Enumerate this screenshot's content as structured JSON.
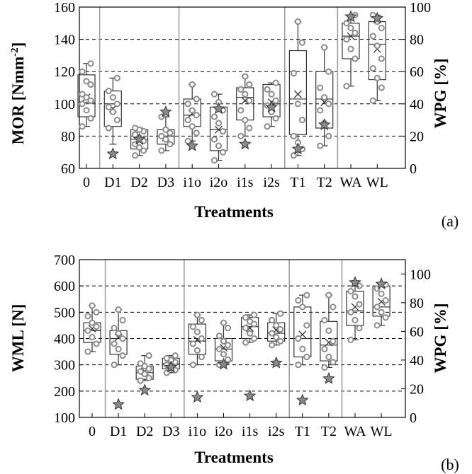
{
  "colors": {
    "box": "#333333",
    "marker_fill": "#ffffff",
    "marker_stroke": "#8c8c8c",
    "star_fill": "#8a8a8a",
    "star_stroke": "#333333",
    "grid": "#000000",
    "separator": "#9a9a9a"
  },
  "chart_data": [
    {
      "panel_tag": "(a)",
      "type": "box",
      "categories": [
        "0",
        "D1",
        "D2",
        "D3",
        "i1o",
        "i2o",
        "i1s",
        "i2s",
        "T1",
        "T2",
        "WA",
        "WL"
      ],
      "xlabel": "Treatments",
      "ylabel": "MOR [Nmm",
      "ylabel_sup": "-2",
      "ylabel_close": "]",
      "ylim": [
        60,
        160
      ],
      "yticks": [
        "60",
        "80",
        "100",
        "120",
        "140",
        "160"
      ],
      "y2label": "WPG [%]",
      "y2lim": [
        0,
        100
      ],
      "y2ticks": [
        "0",
        "20",
        "40",
        "60",
        "80",
        "100"
      ],
      "grid": "dashed horizontal",
      "group_separators_after": [
        "0",
        "D3",
        "i2s",
        "T2"
      ],
      "boxes": [
        {
          "q1": 92,
          "median": 101,
          "q3": 118,
          "whisker_low": 86,
          "whisker_high": 125,
          "mean": 104
        },
        {
          "q1": 86,
          "median": 100,
          "q3": 108,
          "whisker_low": 75,
          "whisker_high": 116,
          "mean": 97
        },
        {
          "q1": 72,
          "median": 78,
          "q3": 84,
          "whisker_low": 68,
          "whisker_high": 85,
          "mean": 77
        },
        {
          "q1": 75,
          "median": 80,
          "q3": 84,
          "whisker_low": 71,
          "whisker_high": 92,
          "mean": 79
        },
        {
          "q1": 86,
          "median": 93,
          "q3": 103,
          "whisker_low": 77,
          "whisker_high": 112,
          "mean": 94
        },
        {
          "q1": 71,
          "median": 84,
          "q3": 98,
          "whisker_low": 65,
          "whisker_high": 106,
          "mean": 84
        },
        {
          "q1": 90,
          "median": 104,
          "q3": 110,
          "whisker_low": 80,
          "whisker_high": 117,
          "mean": 102
        },
        {
          "q1": 92,
          "median": 100,
          "q3": 112,
          "whisker_low": 86,
          "whisker_high": 113,
          "mean": 101
        },
        {
          "q1": 81,
          "median": 103,
          "q3": 133,
          "whisker_low": 68,
          "whisker_high": 151,
          "mean": 106
        },
        {
          "q1": 85,
          "median": 103,
          "q3": 120,
          "whisker_low": 74,
          "whisker_high": 135,
          "mean": 101
        },
        {
          "q1": 128,
          "median": 142,
          "q3": 150,
          "whisker_low": 111,
          "whisker_high": 155,
          "mean": 142
        },
        {
          "q1": 115,
          "median": 137,
          "q3": 151,
          "whisker_low": 102,
          "whisker_high": 155,
          "mean": 134
        }
      ],
      "points": [
        [
          86,
          91,
          96,
          100,
          102,
          104,
          106,
          112,
          114,
          120,
          125
        ],
        [
          85,
          90,
          95,
          98,
          100,
          104,
          108,
          116
        ],
        [
          68,
          71,
          73,
          75,
          77,
          79,
          81,
          83,
          84,
          85
        ],
        [
          71,
          75,
          78,
          80,
          82,
          84,
          92
        ],
        [
          77,
          82,
          86,
          90,
          93,
          96,
          100,
          103,
          112
        ],
        [
          65,
          70,
          74,
          78,
          83,
          88,
          92,
          96,
          101,
          106
        ],
        [
          80,
          85,
          90,
          96,
          102,
          106,
          109,
          112,
          117
        ],
        [
          86,
          91,
          95,
          99,
          102,
          106,
          109,
          113
        ],
        [
          68,
          72,
          76,
          80,
          90,
          100,
          119,
          138,
          151
        ],
        [
          74,
          80,
          88,
          96,
          100,
          104,
          110,
          120,
          135
        ],
        [
          111,
          128,
          134,
          140,
          144,
          147,
          150,
          155
        ],
        [
          102,
          110,
          116,
          122,
          128,
          136,
          142,
          147,
          151,
          155
        ]
      ],
      "wpg_stars": [
        null,
        9,
        18,
        35,
        14,
        37,
        15,
        38,
        12,
        27,
        94,
        93
      ]
    },
    {
      "panel_tag": "(b)",
      "type": "box",
      "categories": [
        "0",
        "D1",
        "D2",
        "D3",
        "i1o",
        "i2o",
        "i1s",
        "i2s",
        "T1",
        "T2",
        "WA",
        "WL"
      ],
      "xlabel": "Treatments",
      "ylabel": "WML [N]",
      "ylim": [
        100,
        700
      ],
      "yticks": [
        "100",
        "200",
        "300",
        "400",
        "500",
        "600",
        "700"
      ],
      "y2label": "WPG [%]",
      "y2lim": [
        0,
        110
      ],
      "y2ticks": [
        "0",
        "20",
        "40",
        "60",
        "80",
        "100"
      ],
      "grid": "dashed horizontal",
      "group_separators_after": [
        "0",
        "D3",
        "i2s",
        "T2"
      ],
      "boxes": [
        {
          "q1": 385,
          "median": 430,
          "q3": 460,
          "whisker_low": 350,
          "whisker_high": 525,
          "mean": 438
        },
        {
          "q1": 340,
          "median": 400,
          "q3": 430,
          "whisker_low": 300,
          "whisker_high": 510,
          "mean": 404
        },
        {
          "q1": 245,
          "median": 270,
          "q3": 295,
          "whisker_low": 240,
          "whisker_high": 335,
          "mean": 275
        },
        {
          "q1": 285,
          "median": 305,
          "q3": 325,
          "whisker_low": 270,
          "whisker_high": 335,
          "mean": 310
        },
        {
          "q1": 340,
          "median": 390,
          "q3": 455,
          "whisker_low": 300,
          "whisker_high": 490,
          "mean": 395
        },
        {
          "q1": 315,
          "median": 360,
          "q3": 400,
          "whisker_low": 300,
          "whisker_high": 460,
          "mean": 365
        },
        {
          "q1": 400,
          "median": 445,
          "q3": 480,
          "whisker_low": 385,
          "whisker_high": 490,
          "mean": 440
        },
        {
          "q1": 390,
          "median": 420,
          "q3": 460,
          "whisker_low": 375,
          "whisker_high": 495,
          "mean": 432
        },
        {
          "q1": 330,
          "median": 400,
          "q3": 520,
          "whisker_low": 300,
          "whisker_high": 565,
          "mean": 415
        },
        {
          "q1": 315,
          "median": 375,
          "q3": 465,
          "whisker_low": 290,
          "whisker_high": 565,
          "mean": 385
        },
        {
          "q1": 450,
          "median": 505,
          "q3": 580,
          "whisker_low": 395,
          "whisker_high": 600,
          "mean": 520
        },
        {
          "q1": 485,
          "median": 520,
          "q3": 600,
          "whisker_low": 450,
          "whisker_high": 605,
          "mean": 540
        }
      ],
      "points": [
        [
          350,
          380,
          405,
          430,
          445,
          460,
          485,
          500,
          525
        ],
        [
          300,
          335,
          360,
          380,
          400,
          420,
          440,
          470,
          510
        ],
        [
          240,
          250,
          265,
          275,
          285,
          295,
          305,
          335
        ],
        [
          270,
          280,
          290,
          300,
          310,
          318,
          325,
          335
        ],
        [
          300,
          330,
          355,
          380,
          400,
          425,
          445,
          470,
          490
        ],
        [
          300,
          320,
          340,
          360,
          375,
          390,
          410,
          440,
          460
        ],
        [
          385,
          400,
          420,
          440,
          455,
          465,
          480,
          490
        ],
        [
          375,
          390,
          405,
          420,
          435,
          450,
          470,
          495
        ],
        [
          300,
          330,
          360,
          400,
          450,
          520,
          545,
          565
        ],
        [
          290,
          310,
          330,
          360,
          390,
          430,
          470,
          520,
          565
        ],
        [
          395,
          440,
          470,
          500,
          530,
          560,
          580,
          600
        ],
        [
          450,
          480,
          500,
          520,
          545,
          570,
          590,
          605
        ]
      ],
      "wpg_stars": [
        null,
        9,
        19,
        35,
        14,
        37,
        15,
        38,
        12,
        27,
        94,
        93
      ]
    }
  ]
}
